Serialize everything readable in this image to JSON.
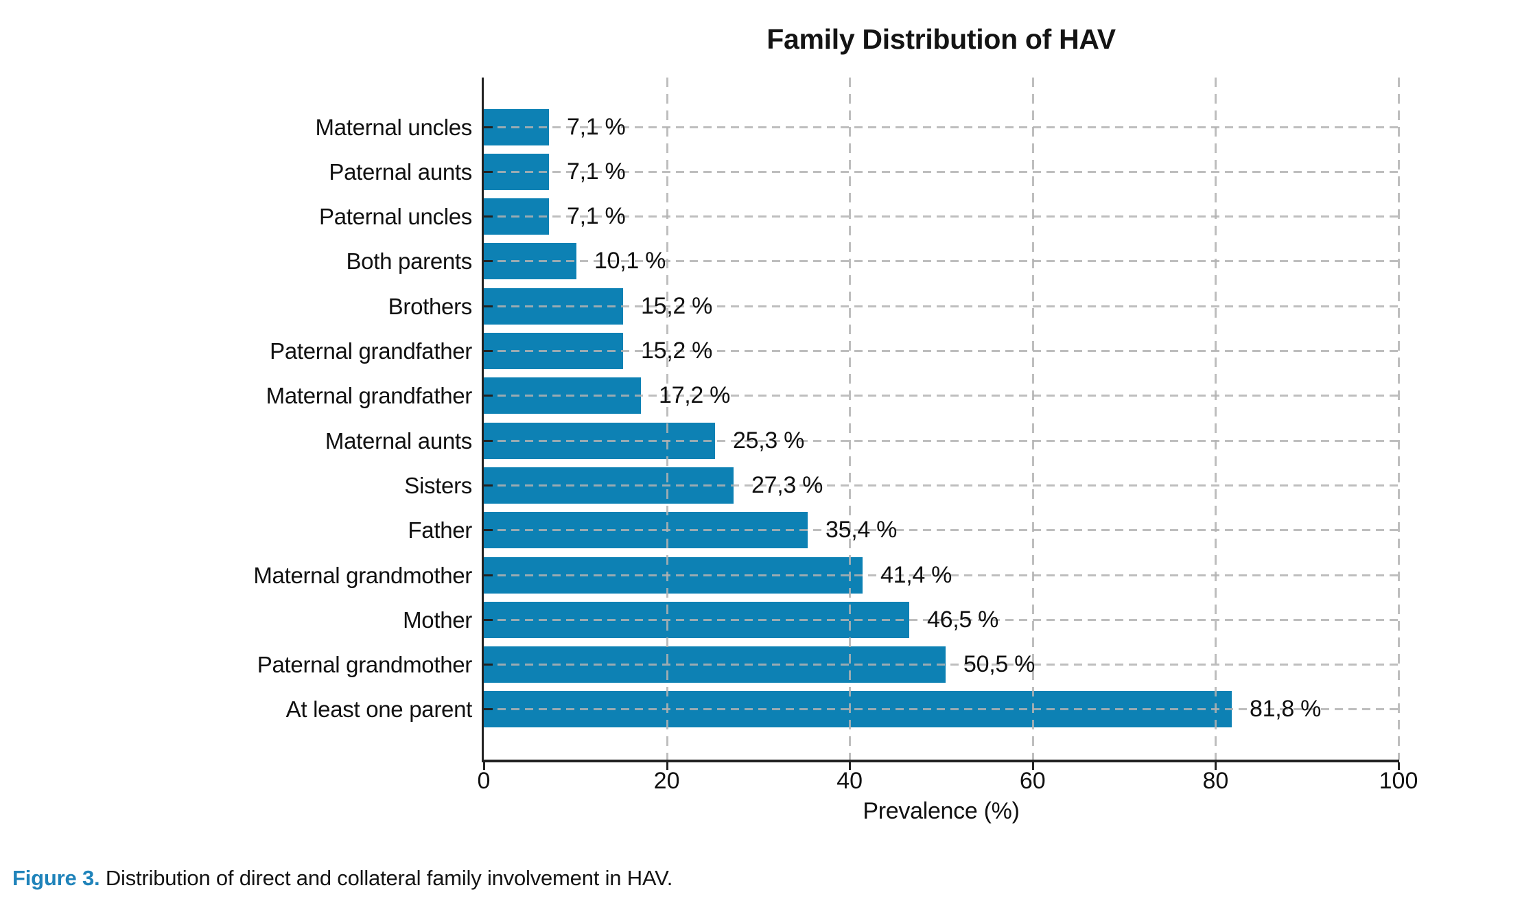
{
  "chart_data": {
    "type": "bar",
    "orientation": "horizontal",
    "title": "Family Distribution of HAV",
    "xlabel": "Prevalence (%)",
    "xlim": [
      0,
      100
    ],
    "xticks": [
      0,
      20,
      40,
      60,
      80,
      100
    ],
    "grid": "dashed gridlines on both axes, drawn over bars",
    "legend": "none",
    "bar_color": "#0d81b4",
    "categories": [
      "Maternal uncles",
      "Paternal aunts",
      "Paternal uncles",
      "Both parents",
      "Brothers",
      "Paternal grandfather",
      "Maternal grandfather",
      "Maternal aunts",
      "Sisters",
      "Father",
      "Maternal grandmother",
      "Mother",
      "Paternal grandmother",
      "At least one parent"
    ],
    "values": [
      7.1,
      7.1,
      7.1,
      10.1,
      15.2,
      15.2,
      17.2,
      25.3,
      27.3,
      35.4,
      41.4,
      46.5,
      50.5,
      81.8
    ],
    "value_labels": [
      "7,1 %",
      "7,1 %",
      "7,1 %",
      "10,1 %",
      "15,2 %",
      "15,2 %",
      "17,2 %",
      "25,3 %",
      "27,3 %",
      "35,4 %",
      "41,4 %",
      "46,5 %",
      "50,5 %",
      "81,8 %"
    ]
  },
  "caption": {
    "label": "Figure 3.",
    "text": " Distribution of direct and collateral family involvement in HAV.",
    "label_color": "#1f83ba"
  }
}
